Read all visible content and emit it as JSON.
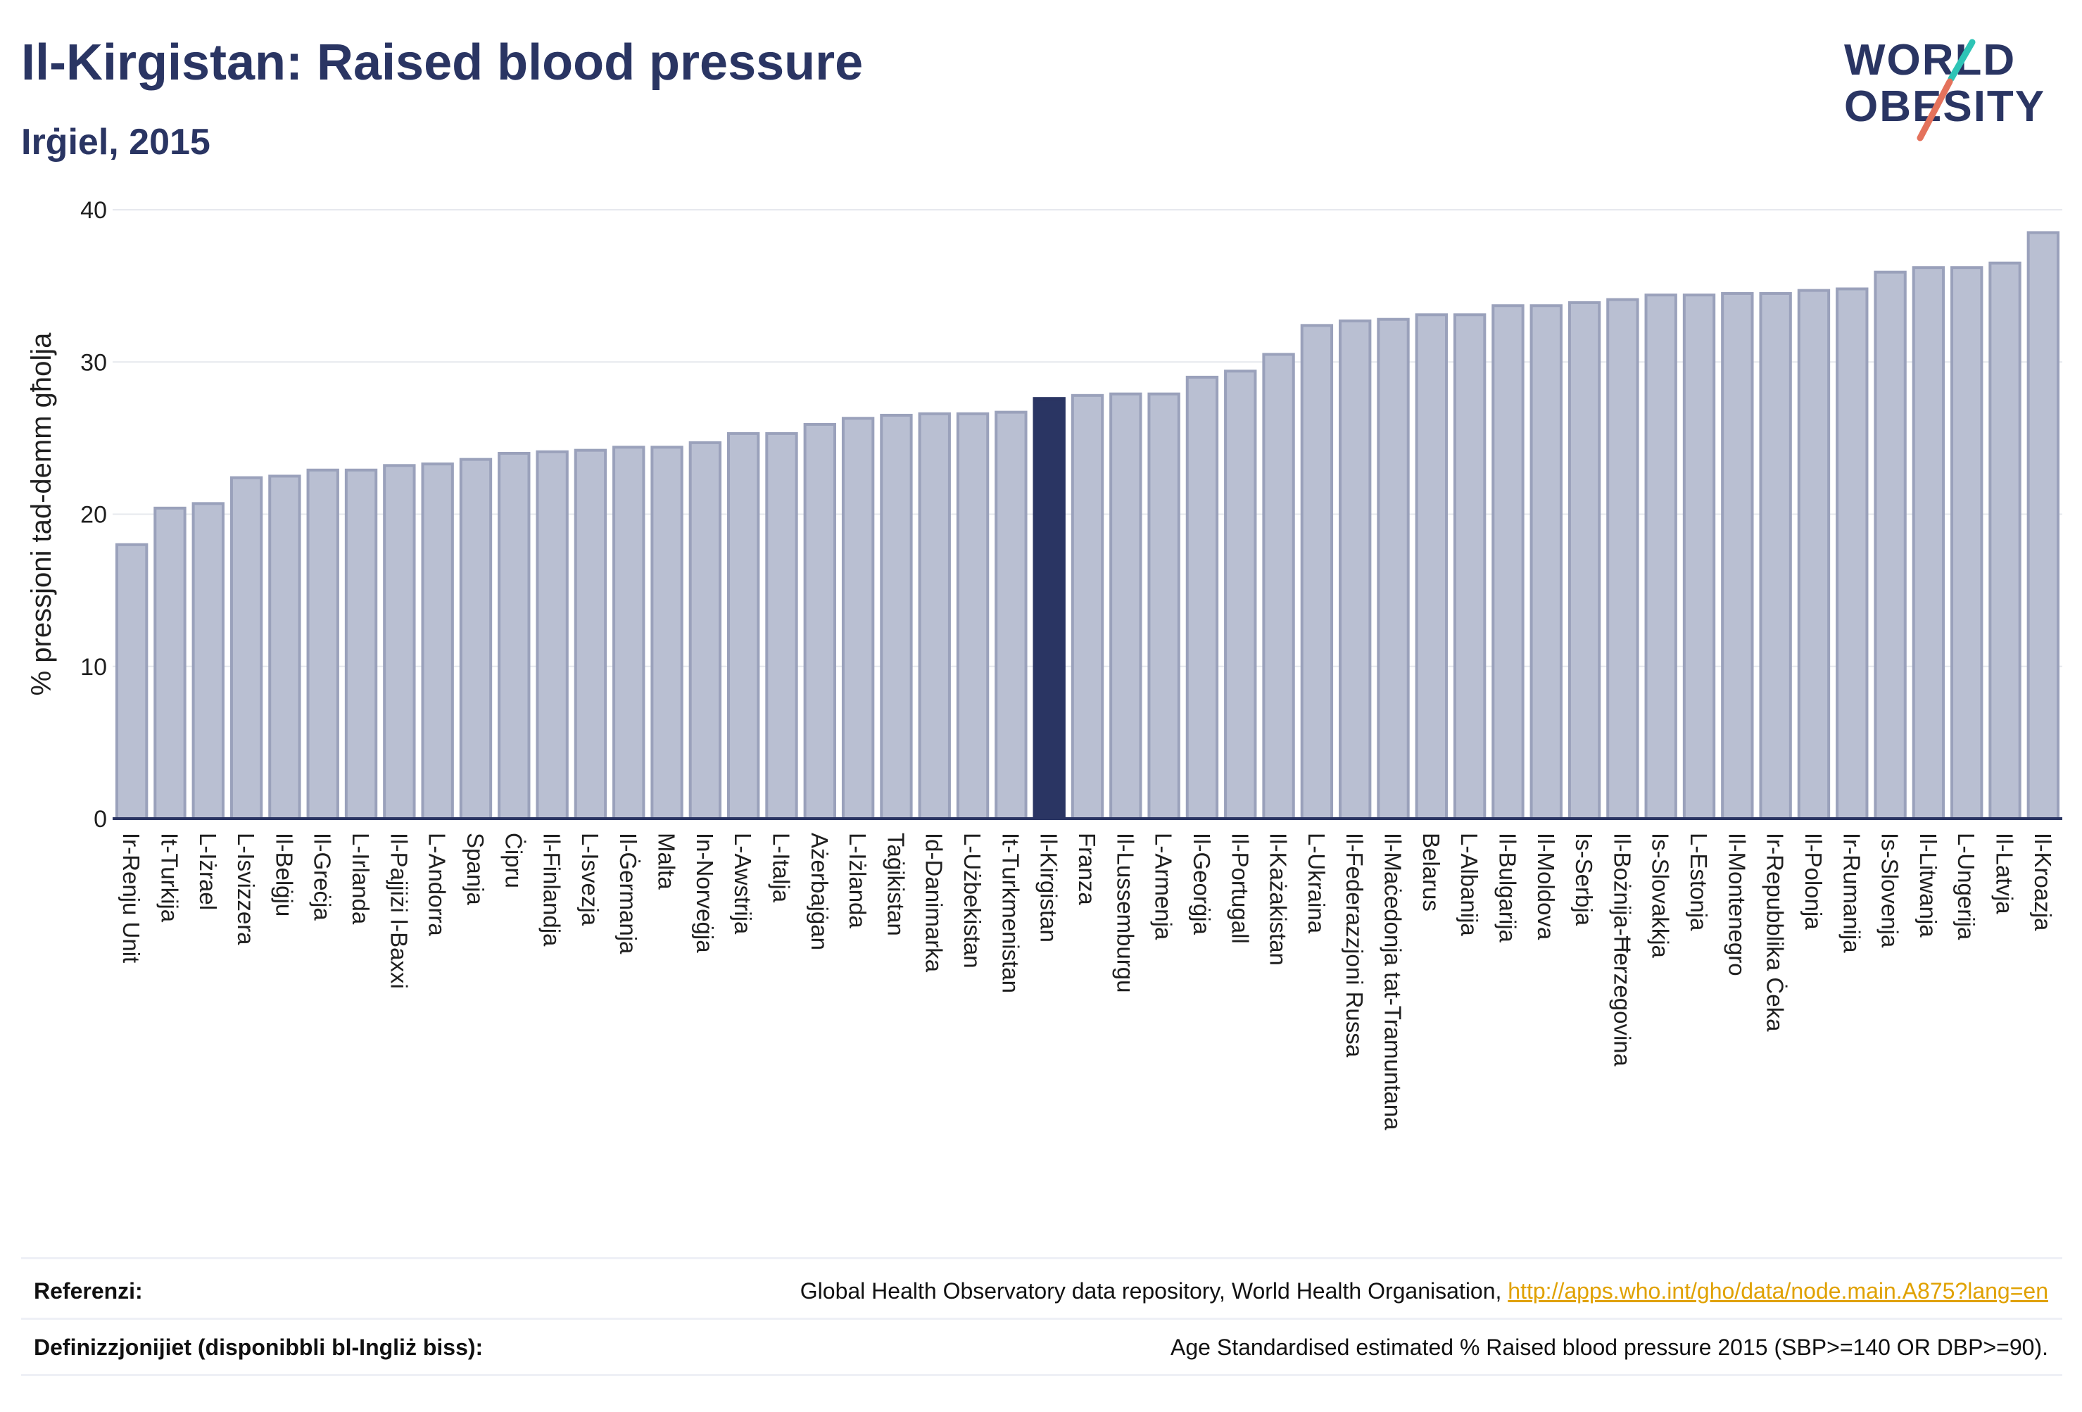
{
  "header": {
    "title": "Il-Kirgistan: Raised blood pressure",
    "subtitle": "Irġiel, 2015"
  },
  "logo": {
    "line1": "WORLD",
    "line2": "OBESITY",
    "accent_colors": [
      "#2ec4b6",
      "#e4725c"
    ]
  },
  "chart_data": {
    "type": "bar",
    "ylabel": "% pressjoni tad-demm għolja",
    "ylim": [
      0,
      40
    ],
    "yticks": [
      0,
      10,
      20,
      30,
      40
    ],
    "grid": true,
    "highlight": "Il-Kirgistan",
    "colors": {
      "bar": "#b9bfd2",
      "bar_edge": "#9aa1bb",
      "highlight": "#2a3563"
    },
    "categories": [
      "Ir-Renju Unit",
      "It-Turkija",
      "L-Iżrael",
      "L-Isvizzera",
      "Il-Belġju",
      "Il-Greċja",
      "L-Irlanda",
      "Il-Pajjiżi l-Baxxi",
      "L-Andorra",
      "Spanja",
      "Ċipru",
      "Il-Finlandja",
      "L-Isvezja",
      "Il-Ġermanja",
      "Malta",
      "In-Norveġja",
      "L-Awstrija",
      "L-Italja",
      "Ażerbajġan",
      "L-Iżlanda",
      "Taġikistan",
      "Id-Danimarka",
      "L-Użbekistan",
      "It-Turkmenistan",
      "Il-Kirgistan",
      "Franza",
      "Il-Lussemburgu",
      "L-Armenja",
      "Il-Georġja",
      "Il-Portugall",
      "Il-Każakistan",
      "L-Ukraina",
      "Il-Federazzjoni Russa",
      "Il-Maċedonja tat-Tramuntana",
      "Belarus",
      "L-Albanija",
      "Il-Bulgarija",
      "Il-Moldova",
      "Is-Serbja",
      "Il-Bożnija-Ħerzegovina",
      "Is-Slovakkja",
      "L-Estonja",
      "Il-Montenegro",
      "Ir-Repubblika Ċeka",
      "Il-Polonja",
      "Ir-Rumanija",
      "Is-Slovenja",
      "Il-Litwanja",
      "L-Ungerija",
      "Il-Latvja",
      "Il-Kroazja"
    ],
    "values": [
      18.0,
      20.4,
      20.7,
      22.4,
      22.5,
      22.9,
      22.9,
      23.2,
      23.3,
      23.6,
      24.0,
      24.1,
      24.2,
      24.4,
      24.4,
      24.7,
      25.3,
      25.3,
      25.9,
      26.3,
      26.5,
      26.6,
      26.6,
      26.7,
      27.6,
      27.8,
      27.9,
      27.9,
      29.0,
      29.4,
      30.5,
      32.4,
      32.7,
      32.8,
      33.1,
      33.1,
      33.7,
      33.7,
      33.9,
      34.1,
      34.4,
      34.4,
      34.5,
      34.5,
      34.7,
      34.8,
      35.9,
      36.2,
      36.2,
      36.5,
      38.5
    ]
  },
  "footer": {
    "references_label": "Referenzi:",
    "references_text": "Global Health Observatory data repository, World Health Organisation, ",
    "references_link": "http://apps.who.int/gho/data/node.main.A875?lang=en",
    "definitions_label": "Definizzjonijiet (disponibbli bl-Ingliż biss):",
    "definitions_text": "Age Standardised estimated % Raised blood pressure 2015 (SBP>=140 OR DBP>=90)."
  }
}
